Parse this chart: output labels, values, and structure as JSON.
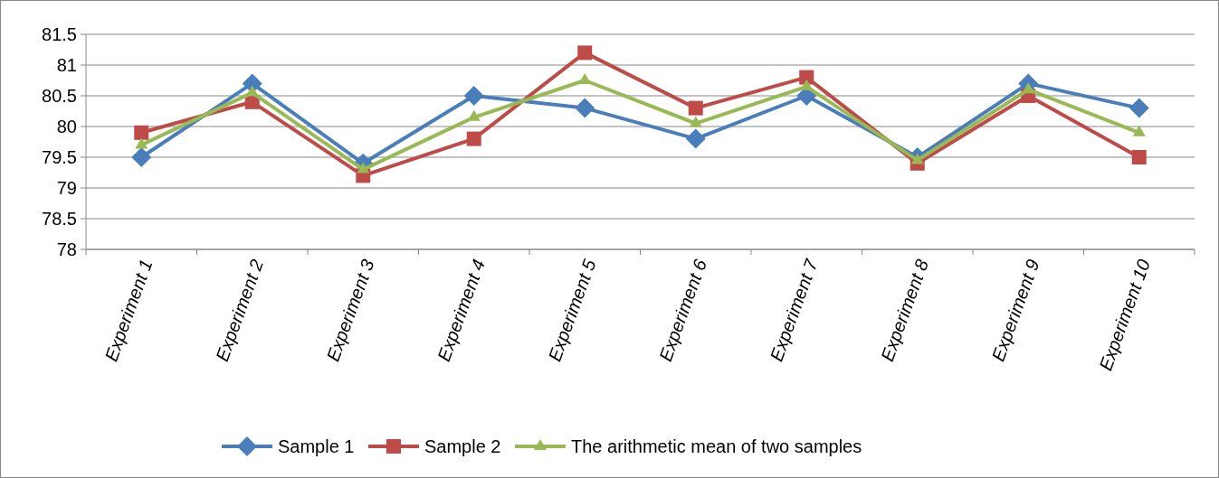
{
  "chart_data": {
    "type": "line",
    "categories": [
      "Experiment 1",
      "Experiment 2",
      "Experiment 3",
      "Experiment 4",
      "Experiment 5",
      "Experiment 6",
      "Experiment 7",
      "Experiment 8",
      "Experiment  9",
      "Experiment 10"
    ],
    "series": [
      {
        "name": "Sample 1",
        "color": "#4a7ebb",
        "marker": "diamond",
        "values": [
          79.5,
          80.7,
          79.4,
          80.5,
          80.3,
          79.8,
          80.5,
          79.5,
          80.7,
          80.3
        ]
      },
      {
        "name": "Sample 2",
        "color": "#be4b48",
        "marker": "square",
        "values": [
          79.9,
          80.4,
          79.2,
          79.8,
          81.2,
          80.3,
          80.8,
          79.4,
          80.5,
          79.5
        ]
      },
      {
        "name": "The arithmetic mean of two samples",
        "color": "#98b954",
        "marker": "triangle",
        "values": [
          79.7,
          80.55,
          79.3,
          80.15,
          80.75,
          80.05,
          80.65,
          79.45,
          80.6,
          79.9
        ]
      }
    ],
    "ylim": [
      78,
      81.5
    ],
    "yticks": [
      78,
      78.5,
      79,
      79.5,
      80,
      80.5,
      81,
      81.5
    ],
    "grid": "y",
    "legend": "bottom",
    "line_style": "solid"
  }
}
